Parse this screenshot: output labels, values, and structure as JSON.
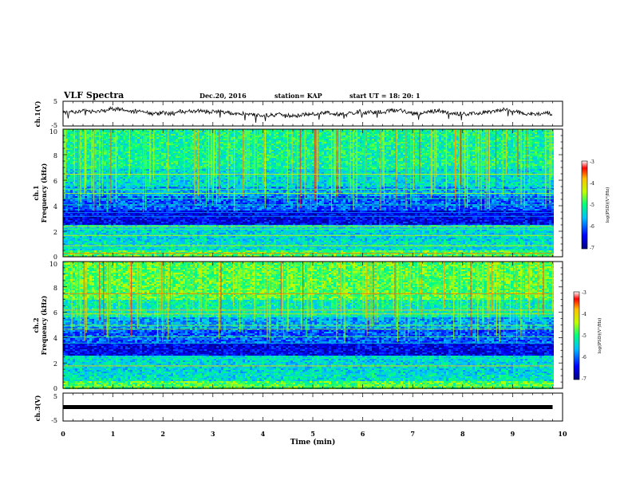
{
  "header": {
    "title": "VLF Spectra",
    "date": "Dec.20, 2016",
    "station": "station= KAP",
    "start": "start  UT =   18: 20: 1"
  },
  "chart_data": [
    {
      "type": "line",
      "panel": "ch1-waveform",
      "ylabel": "ch.1(V)",
      "ylim": [
        -5,
        5
      ],
      "yticks": [
        "5",
        "-5"
      ],
      "xlim": [
        0,
        10
      ],
      "trace": {
        "color": "#000000",
        "x_end": 9.8,
        "mean": 0.0,
        "amplitude": 1.5
      }
    },
    {
      "type": "heatmap",
      "panel": "ch1-spectrogram",
      "ylabel_top": "ch.1",
      "ylabel": "Frequency (kHz)",
      "ylim": [
        0,
        10
      ],
      "yticks": [
        "0",
        "2",
        "4",
        "6",
        "8",
        "10"
      ],
      "xlim": [
        0,
        10
      ],
      "x_end": 9.8,
      "colorbar": {
        "label": "log(PSD)(V²/Hz)",
        "range": [
          -7,
          -3
        ],
        "ticks": [
          "-3",
          "-4",
          "-5",
          "-6",
          "-7"
        ]
      }
    },
    {
      "type": "heatmap",
      "panel": "ch2-spectrogram",
      "ylabel_top": "ch.2",
      "ylabel": "Frequency (kHz)",
      "ylim": [
        0,
        10
      ],
      "yticks": [
        "0",
        "2",
        "4",
        "6",
        "8",
        "10"
      ],
      "xlim": [
        0,
        10
      ],
      "x_end": 9.8,
      "colorbar": {
        "label": "log(PSD)(V²/Hz)",
        "range": [
          -7,
          -3
        ],
        "ticks": [
          "-3",
          "-4",
          "-5",
          "-6",
          "-7"
        ]
      }
    },
    {
      "type": "line",
      "panel": "ch3-waveform",
      "ylabel": "ch.3(V)",
      "ylim": [
        -5,
        5
      ],
      "yticks": [
        "5",
        "-5"
      ],
      "xlim": [
        0,
        10
      ],
      "trace": {
        "color": "#000000",
        "x_end": 9.8,
        "value": 0.0
      }
    }
  ],
  "x_axis": {
    "label": "Time (min)",
    "ticks": [
      "0",
      "1",
      "2",
      "3",
      "4",
      "5",
      "6",
      "7",
      "8",
      "9",
      "10"
    ]
  }
}
